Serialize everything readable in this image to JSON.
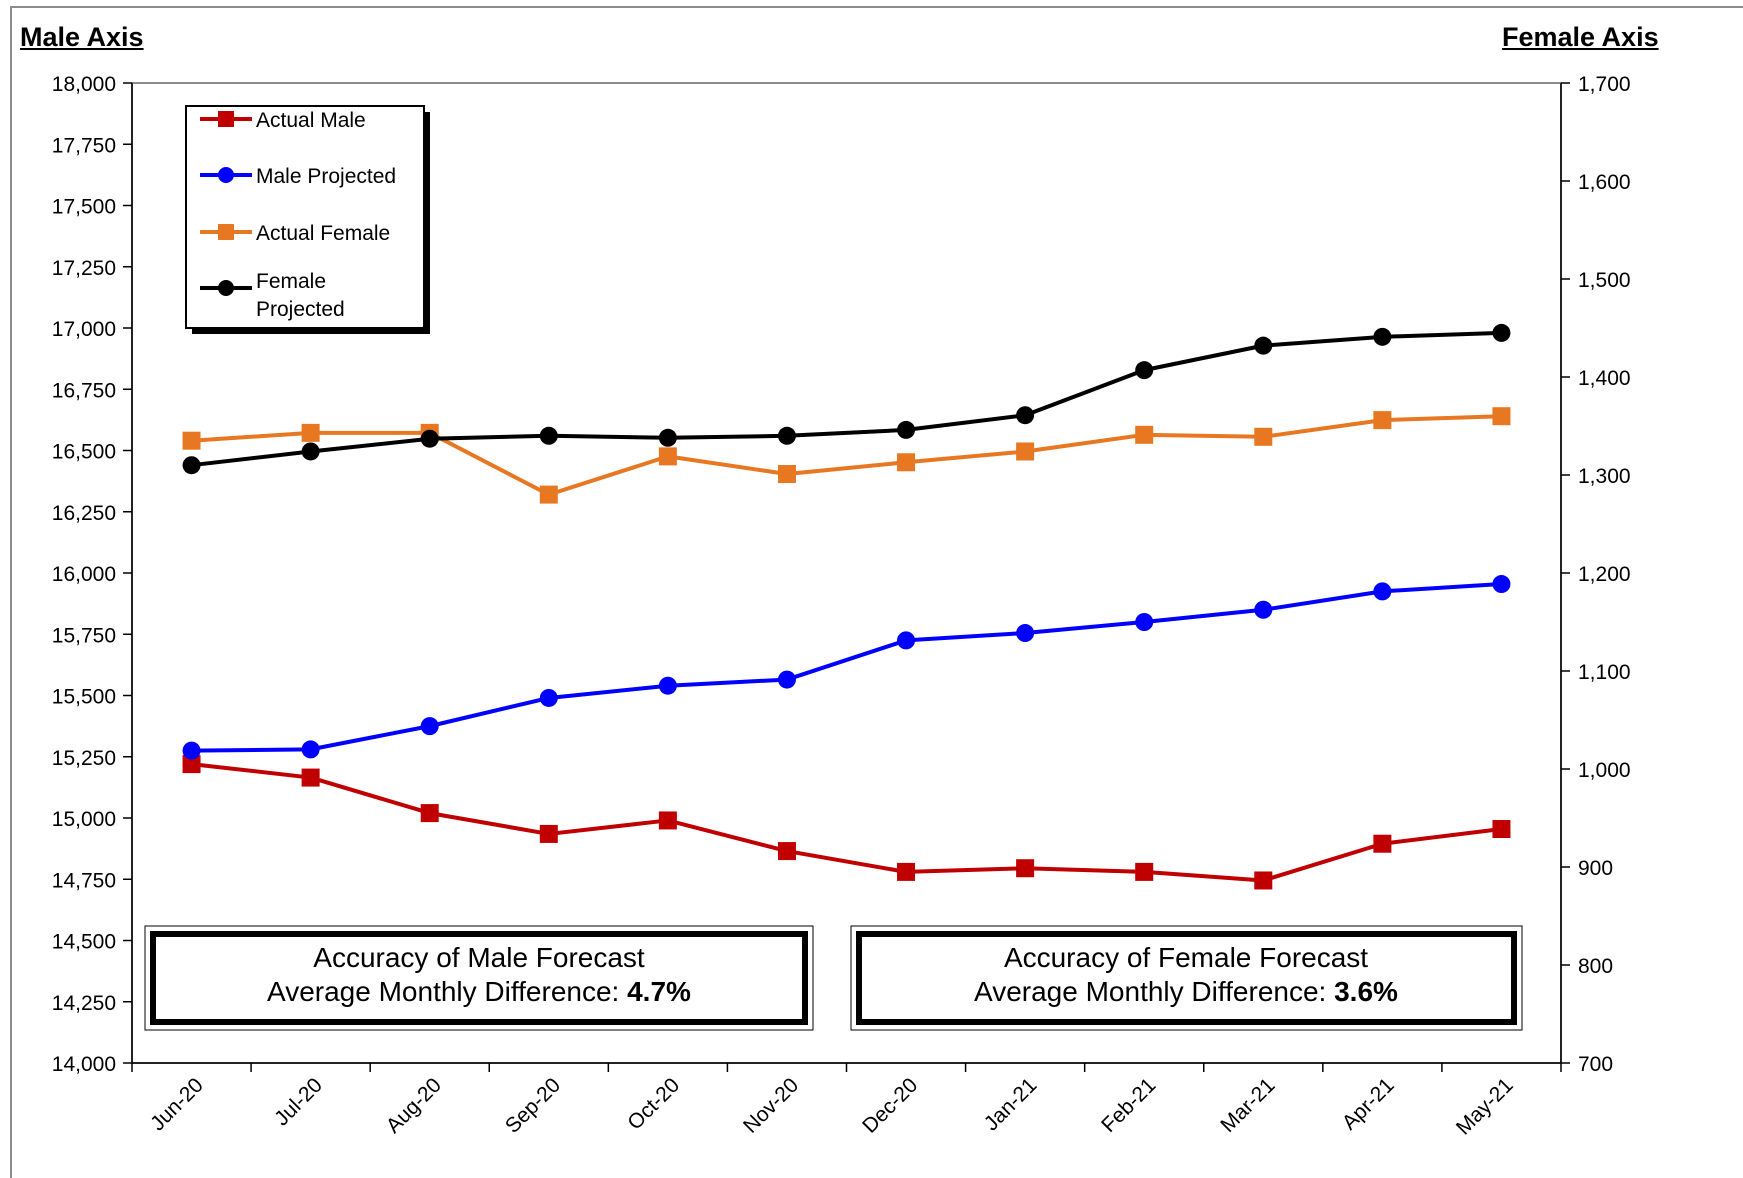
{
  "left_axis_title": "Male Axis",
  "right_axis_title": "Female Axis",
  "legend": [
    {
      "label": "Actual Male"
    },
    {
      "label": "Male Projected"
    },
    {
      "label": "Actual Female"
    },
    {
      "label": "Female\nProjected"
    }
  ],
  "boxes": {
    "male": {
      "line1": "Accuracy of Male Forecast",
      "line2_prefix": "Average Monthly Difference: ",
      "value": "4.7%"
    },
    "female": {
      "line1": "Accuracy of Female Forecast",
      "line2_prefix": "Average Monthly Difference: ",
      "value": "3.6%"
    }
  },
  "colors": {
    "actual_male": "#c00000",
    "male_projected": "#0000ff",
    "actual_female": "#e87722",
    "female_projected": "#000000"
  },
  "chart_data": {
    "type": "line",
    "categories": [
      "Jun-20",
      "Jul-20",
      "Aug-20",
      "Sep-20",
      "Oct-20",
      "Nov-20",
      "Dec-20",
      "Jan-21",
      "Feb-21",
      "Mar-21",
      "Apr-21",
      "May-21"
    ],
    "y_left": {
      "label": "Male Axis",
      "ylim": [
        14000,
        18000
      ],
      "ticks": [
        "14,000",
        "14,250",
        "14,500",
        "14,750",
        "15,000",
        "15,250",
        "15,500",
        "15,750",
        "16,000",
        "16,250",
        "16,500",
        "16,750",
        "17,000",
        "17,250",
        "17,500",
        "17,750",
        "18,000"
      ]
    },
    "y_right": {
      "label": "Female Axis",
      "ylim": [
        700,
        1700
      ],
      "ticks": [
        "700",
        "800",
        "900",
        "1,000",
        "1,100",
        "1,200",
        "1,300",
        "1,400",
        "1,500",
        "1,600",
        "1,700"
      ]
    },
    "series": [
      {
        "name": "Actual Male",
        "axis": "left",
        "marker": "square",
        "color": "#c00000",
        "values": [
          15220,
          15165,
          15020,
          14935,
          14990,
          14865,
          14780,
          14795,
          14780,
          14745,
          14895,
          14955
        ]
      },
      {
        "name": "Male Projected",
        "axis": "left",
        "marker": "circle",
        "color": "#0000ff",
        "values": [
          15275,
          15280,
          15375,
          15490,
          15540,
          15565,
          15725,
          15755,
          15800,
          15850,
          15925,
          15955
        ]
      },
      {
        "name": "Actual Female",
        "axis": "right",
        "marker": "square",
        "color": "#e87722",
        "values": [
          1335,
          1343,
          1343,
          1280,
          1319,
          1301,
          1313,
          1324,
          1341,
          1339,
          1356,
          1360
        ]
      },
      {
        "name": "Female Projected",
        "axis": "right",
        "marker": "circle",
        "color": "#000000",
        "values": [
          1310,
          1324,
          1337,
          1340,
          1338,
          1340,
          1346,
          1361,
          1407,
          1432,
          1441,
          1445
        ]
      }
    ],
    "grid": false,
    "legend_position": "top-left"
  }
}
